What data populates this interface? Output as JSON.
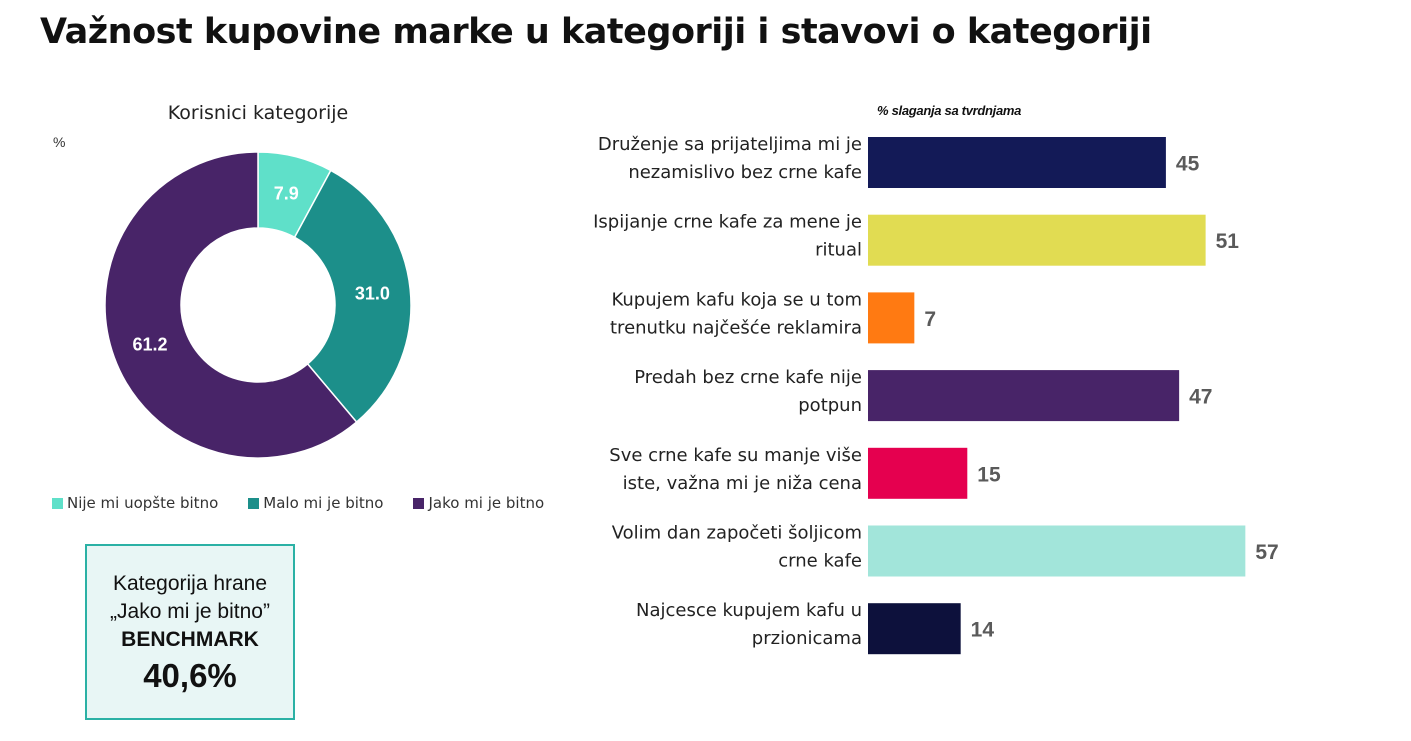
{
  "title": "Važnost kupovine marke u kategoriji i stavovi o kategoriji",
  "donut": {
    "subtitle": "Korisnici kategorije",
    "unit": "%"
  },
  "benchmark": {
    "line1": "Kategorija hrane",
    "line2": "„Jako mi je bitno”",
    "line3": "BENCHMARK",
    "value": "40,6%"
  },
  "chart_data": [
    {
      "type": "pie",
      "subtype": "donut",
      "title": "Korisnici kategorije",
      "ylabel": "%",
      "categories": [
        "Nije mi uopšte bitno",
        "Malo mi je bitno",
        "Jako mi je bitno"
      ],
      "values": [
        7.9,
        31.0,
        61.2
      ],
      "labels": [
        "7.9",
        "31.0",
        "61.2"
      ],
      "colors": [
        "#5fe0c9",
        "#1c8f8a",
        "#482468"
      ],
      "legend": "bottom"
    },
    {
      "type": "bar",
      "orientation": "horizontal",
      "title": "% slaganja sa tvrdnjama",
      "categories": [
        [
          "Druženje sa prijateljima mi je",
          "nezamislivo bez crne kafe"
        ],
        [
          "Ispijanje crne kafe za mene je",
          "ritual"
        ],
        [
          "Kupujem kafu koja se u tom",
          "trenutku najčešće reklamira"
        ],
        [
          "Predah bez crne kafe nije",
          "potpun"
        ],
        [
          "Sve crne kafe su manje više",
          "iste, važna mi je niža cena"
        ],
        [
          "Volim dan započeti šoljicom",
          "crne kafe"
        ],
        [
          "Najcesce kupujem kafu u",
          "przionicama"
        ]
      ],
      "values": [
        45,
        51,
        7,
        47,
        15,
        57,
        14
      ],
      "colors": [
        "#131a57",
        "#e1dc52",
        "#ff7a12",
        "#482468",
        "#e5004f",
        "#a2e5da",
        "#0d113c"
      ],
      "xlim": [
        0,
        100
      ],
      "grid": false
    }
  ]
}
